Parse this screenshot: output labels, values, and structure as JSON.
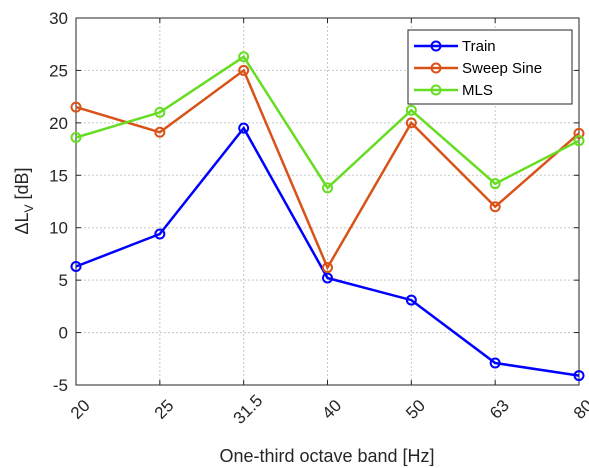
{
  "chart_data": {
    "type": "line",
    "categories": [
      "20",
      "25",
      "31.5",
      "40",
      "50",
      "63",
      "80"
    ],
    "xlabel": "One-third octave band [Hz]",
    "ylabel": "ΔL",
    "ylabel_sub": "V",
    "ylabel_unit": " [dB]",
    "ylim": [
      -5,
      30
    ],
    "yticks": [
      -5,
      0,
      5,
      10,
      15,
      20,
      25,
      30
    ],
    "grid": true,
    "legend_position": "top-right",
    "series": [
      {
        "name": "Train",
        "color": "#0000ff",
        "values": [
          6.3,
          9.4,
          19.5,
          5.2,
          3.1,
          -2.9,
          -4.1
        ]
      },
      {
        "name": "Sweep Sine",
        "color": "#d95319",
        "values": [
          21.5,
          19.1,
          25.0,
          6.2,
          20.0,
          12.0,
          19.0
        ]
      },
      {
        "name": "MLS",
        "color": "#66dd22",
        "values": [
          18.6,
          21.0,
          26.3,
          13.8,
          21.2,
          14.2,
          18.3
        ]
      }
    ]
  }
}
